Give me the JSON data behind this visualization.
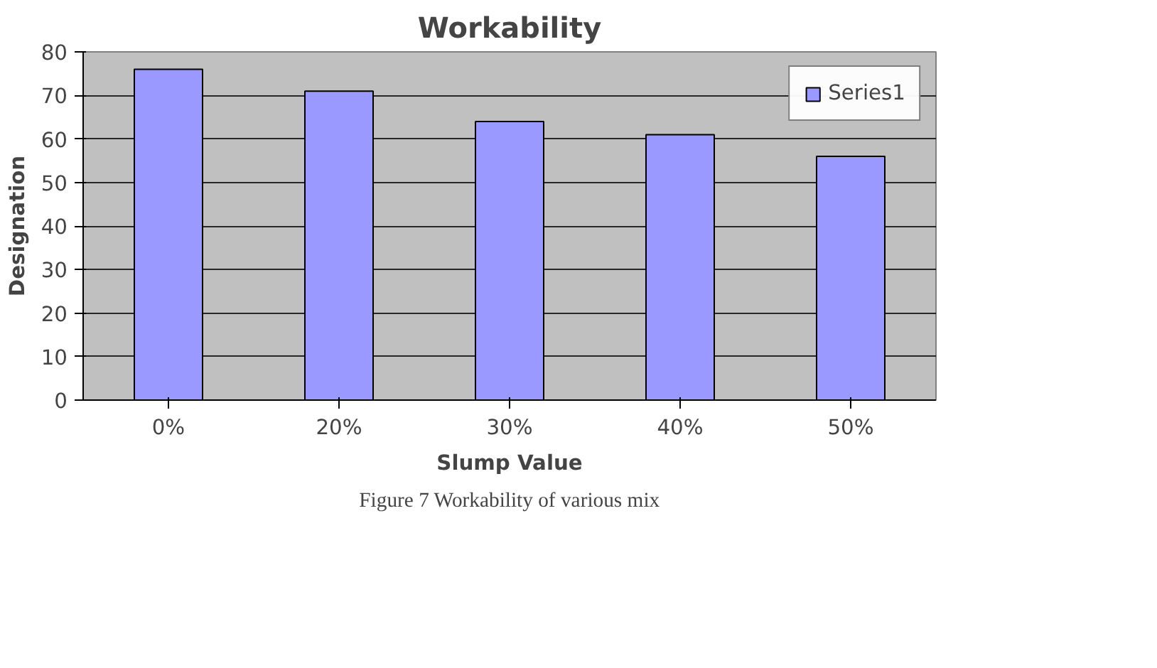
{
  "chart_data": {
    "type": "bar",
    "title": "Workability",
    "xlabel": "Slump Value",
    "ylabel": "Designation",
    "categories": [
      "0%",
      "20%",
      "30%",
      "40%",
      "50%"
    ],
    "series": [
      {
        "name": "Series1",
        "color": "#9999ff",
        "values": [
          76,
          71,
          64,
          61,
          56
        ]
      }
    ],
    "ylim": [
      0,
      80
    ],
    "yticks": [
      0,
      10,
      20,
      30,
      40,
      50,
      60,
      70,
      80
    ],
    "grid": "y",
    "legend": "top right",
    "annotations": [
      "Figure 7 Workability of various mix"
    ]
  }
}
